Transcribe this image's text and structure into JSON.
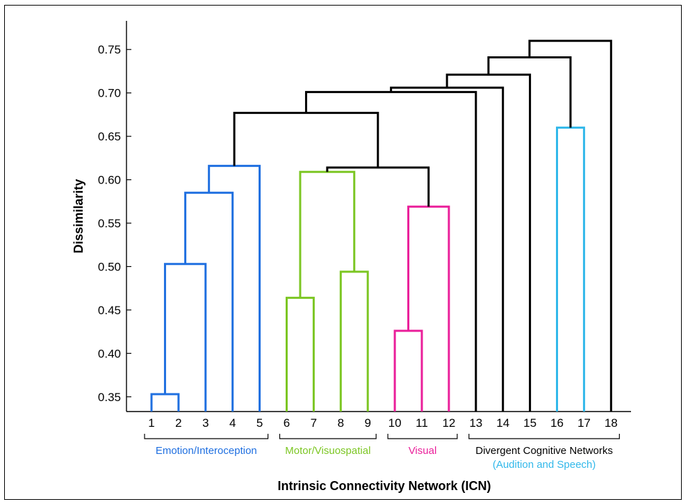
{
  "chart_data": {
    "type": "dendrogram",
    "ylabel": "Dissimilarity",
    "xlabel": "Intrinsic Connectivity Network (ICN)",
    "ylim": [
      0.333,
      0.783
    ],
    "yticks": [
      "0.35",
      "0.40",
      "0.45",
      "0.50",
      "0.55",
      "0.60",
      "0.65",
      "0.70",
      "0.75"
    ],
    "leaves": [
      "1",
      "2",
      "3",
      "4",
      "5",
      "6",
      "7",
      "8",
      "9",
      "10",
      "11",
      "12",
      "13",
      "14",
      "15",
      "16",
      "17",
      "18"
    ],
    "merges": [
      {
        "left": 1,
        "right": 2,
        "height": 0.353,
        "color": "#1f6fe0"
      },
      {
        "left": 1.5,
        "right": 3,
        "height": 0.503,
        "color": "#1f6fe0"
      },
      {
        "left": 2.25,
        "right": 4,
        "height": 0.585,
        "color": "#1f6fe0"
      },
      {
        "left": 3.125,
        "right": 5,
        "height": 0.616,
        "color": "#1f6fe0"
      },
      {
        "left": 6,
        "right": 7,
        "height": 0.464,
        "color": "#7cc623"
      },
      {
        "left": 8,
        "right": 9,
        "height": 0.494,
        "color": "#7cc623"
      },
      {
        "left": 6.5,
        "right": 8.5,
        "height": 0.609,
        "color": "#7cc623"
      },
      {
        "left": 10,
        "right": 11,
        "height": 0.426,
        "color": "#ea1f9a"
      },
      {
        "left": 10.5,
        "right": 12,
        "height": 0.569,
        "color": "#ea1f9a"
      },
      {
        "left": 7.5,
        "right": 11.25,
        "height": 0.614,
        "color": "#000000"
      },
      {
        "left": 4.0625,
        "right": 9.375,
        "height": 0.677,
        "color": "#000000"
      },
      {
        "left": 6.71875,
        "right": 13,
        "height": 0.701,
        "color": "#000000"
      },
      {
        "left": 9.859375,
        "right": 14,
        "height": 0.706,
        "color": "#000000"
      },
      {
        "left": 11.9296875,
        "right": 15,
        "height": 0.721,
        "color": "#000000"
      },
      {
        "left": 16,
        "right": 17,
        "height": 0.66,
        "color": "#31b8ea"
      },
      {
        "left": 13.46484375,
        "right": 16.5,
        "height": 0.741,
        "color": "#000000"
      },
      {
        "left": 14.982421875,
        "right": 18,
        "height": 0.76,
        "color": "#000000"
      }
    ],
    "groups": [
      {
        "label": "Emotion/Interoception",
        "from": 1,
        "to": 5,
        "color": "#1f6fe0"
      },
      {
        "label": "Motor/Visuospatial",
        "from": 6,
        "to": 9,
        "color": "#7cc623"
      },
      {
        "label": "Visual",
        "from": 10,
        "to": 12,
        "color": "#ea1f9a"
      },
      {
        "label": "Divergent Cognitive Networks",
        "sublabel": "(Audition and Speech)",
        "from": 13,
        "to": 18,
        "color": "#000000",
        "subcolor": "#31b8ea"
      }
    ]
  }
}
